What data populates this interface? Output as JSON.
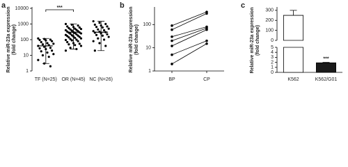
{
  "chart_data": [
    {
      "type": "dotplot",
      "panel_label": "a",
      "ylabel": [
        "Relative miR-23a expression",
        "(fold change)"
      ],
      "log_scale": true,
      "ylim": [
        1,
        10000
      ],
      "yticks": [
        1,
        10,
        100,
        1000,
        10000
      ],
      "significance": "***",
      "color": "#000000",
      "groups": [
        {
          "name": "TF (N=25)",
          "mean": 40,
          "error_bar": [
            3,
            120
          ],
          "values": [
            120,
            110,
            100,
            95,
            90,
            80,
            70,
            60,
            55,
            50,
            45,
            40,
            35,
            30,
            28,
            25,
            20,
            18,
            15,
            12,
            10,
            8,
            5,
            3,
            2
          ]
        },
        {
          "name": "OR (N=45)",
          "mean": 300,
          "error_bar": [
            25,
            1000
          ],
          "values": [
            1000,
            900,
            800,
            700,
            650,
            600,
            550,
            500,
            480,
            450,
            420,
            400,
            380,
            350,
            330,
            300,
            290,
            280,
            260,
            250,
            240,
            220,
            200,
            190,
            180,
            170,
            160,
            150,
            140,
            130,
            120,
            110,
            100,
            95,
            90,
            80,
            70,
            60,
            55,
            50,
            45,
            40,
            30,
            25,
            20
          ]
        },
        {
          "name": "NC (N=26)",
          "mean": 300,
          "error_bar": [
            20,
            1500
          ],
          "values": [
            1500,
            1200,
            1000,
            900,
            800,
            700,
            650,
            600,
            500,
            450,
            400,
            350,
            320,
            300,
            280,
            250,
            220,
            200,
            180,
            150,
            120,
            100,
            80,
            60,
            40,
            20
          ]
        }
      ]
    },
    {
      "type": "paired_line",
      "panel_label": "b",
      "ylabel": [
        "Relative miR-23a expression",
        "(fold change)"
      ],
      "log_scale": true,
      "ylim": [
        1,
        500
      ],
      "yticks": [
        1,
        10,
        100
      ],
      "categories": [
        "BP",
        "CP"
      ],
      "color": "#000000",
      "pairs": [
        [
          90,
          350
        ],
        [
          60,
          300
        ],
        [
          30,
          80
        ],
        [
          20,
          70
        ],
        [
          12,
          60
        ],
        [
          5,
          20
        ],
        [
          2,
          15
        ]
      ]
    },
    {
      "type": "broken_bar",
      "panel_label": "c",
      "ylabel": [
        "Relative miR-23a expression",
        "(fold change)"
      ],
      "ylim_lower": [
        0,
        5
      ],
      "yticks_lower": [
        0,
        1,
        2,
        3,
        4,
        5
      ],
      "ylim_upper": [
        0,
        320
      ],
      "yticks_upper": [
        0,
        100,
        200,
        300
      ],
      "categories": [
        "K562",
        "K562/G01"
      ],
      "values": [
        250,
        1.9
      ],
      "errors": [
        50,
        0.1
      ],
      "colors": [
        "#ffffff",
        "#1a1a1a"
      ],
      "significance": "***"
    }
  ]
}
